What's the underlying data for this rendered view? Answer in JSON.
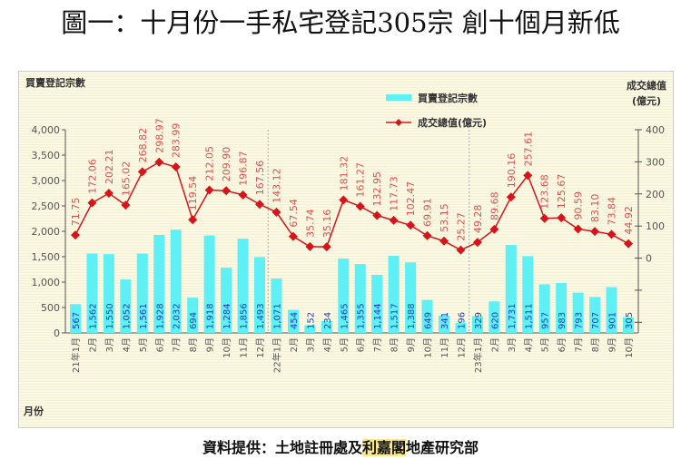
{
  "title": "圖一：十月份一手私宅登記305宗 創十個月新低",
  "source": {
    "prefix": "資料提供：土地註冊處及",
    "highlight": "利嘉閣",
    "suffix": "地產研究部"
  },
  "chart_data": {
    "type": "bar+line",
    "left_axis_title": "買賣登記宗數",
    "right_axis_title_line1": "成交總值",
    "right_axis_title_line2": "(億元)",
    "x_axis_title": "月份",
    "left_ylim": [
      0,
      4000
    ],
    "left_ticks": [
      "0",
      "500",
      "1,000",
      "1,500",
      "2,000",
      "2,500",
      "3,000",
      "3,500",
      "4,000"
    ],
    "right_ylim": [
      -233,
      400
    ],
    "right_ticks": [
      "0",
      "100",
      "200",
      "300",
      "400"
    ],
    "grid": false,
    "legend_placement": "top-right",
    "categories": [
      "21年1月",
      "2月",
      "3月",
      "4月",
      "5月",
      "6月",
      "7月",
      "8月",
      "9月",
      "10月",
      "11月",
      "12月",
      "22年1月",
      "2月",
      "3月",
      "4月",
      "5月",
      "6月",
      "7月",
      "8月",
      "9月",
      "10月",
      "11月",
      "12月",
      "23年1月",
      "2月",
      "3月",
      "4月",
      "5月",
      "6月",
      "7月",
      "8月",
      "9月",
      "10月"
    ],
    "series": [
      {
        "name": "買賣登記宗數",
        "type": "bar",
        "axis": "left",
        "color": "#5ff0f5",
        "values": [
          567,
          1562,
          1550,
          1052,
          1561,
          1928,
          2032,
          694,
          1918,
          1284,
          1856,
          1493,
          1071,
          454,
          152,
          234,
          1465,
          1355,
          1144,
          1517,
          1388,
          649,
          341,
          196,
          329,
          620,
          1731,
          1511,
          957,
          983,
          793,
          707,
          901,
          305
        ]
      },
      {
        "name": "成交總值(億元)",
        "type": "line",
        "axis": "right",
        "color": "#d7141a",
        "values": [
          71.75,
          172.06,
          202.21,
          165.02,
          268.82,
          298.97,
          283.99,
          119.54,
          212.05,
          209.9,
          196.87,
          167.56,
          143.12,
          67.54,
          35.74,
          35.16,
          181.32,
          161.27,
          132.95,
          117.73,
          102.47,
          69.91,
          53.15,
          25.27,
          49.28,
          89.68,
          190.16,
          257.61,
          123.68,
          125.67,
          90.59,
          83.1,
          73.84,
          44.92
        ]
      }
    ]
  }
}
